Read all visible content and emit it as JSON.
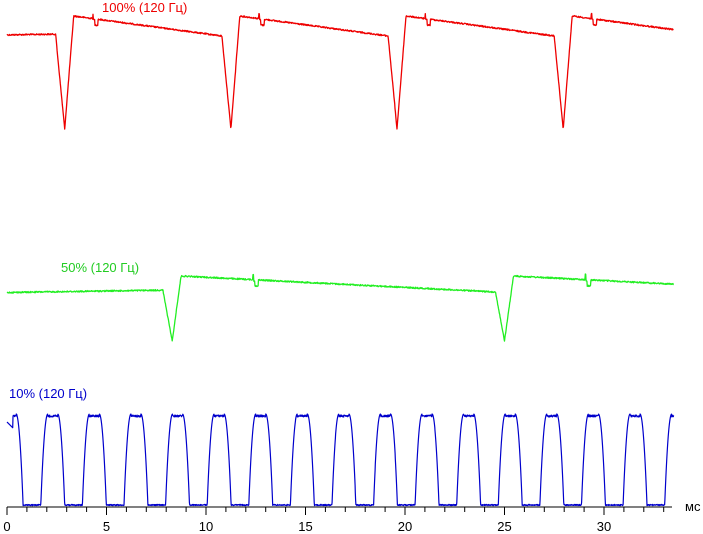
{
  "chart_data": {
    "type": "line",
    "title": "",
    "xlabel": "мс",
    "ylabel": "",
    "xlim": [
      0,
      33.5
    ],
    "x_ticks": [
      0,
      5,
      10,
      15,
      20,
      25,
      30
    ],
    "x_tick_labels": [
      "0",
      "5",
      "10",
      "15",
      "20",
      "25",
      "30"
    ],
    "grid": false,
    "legend": "none",
    "series": [
      {
        "name": "100% (120 Гц)",
        "color": "#ee0000",
        "period_ms": 8.35,
        "first_dip_ms": 2.9,
        "spike_offset_ms": 4.45
      },
      {
        "name": "50% (120 Гц)",
        "color": "#22ee22",
        "period_ms": 16.7,
        "first_dip_ms": 8.3,
        "spike_offset_ms": 12.5
      },
      {
        "name": "10% (120 Гц)",
        "color": "#0000cc",
        "period_ms": 2.09,
        "first_pulse_ms": 1.7,
        "pulse_width_ms": 1.2
      }
    ]
  }
}
